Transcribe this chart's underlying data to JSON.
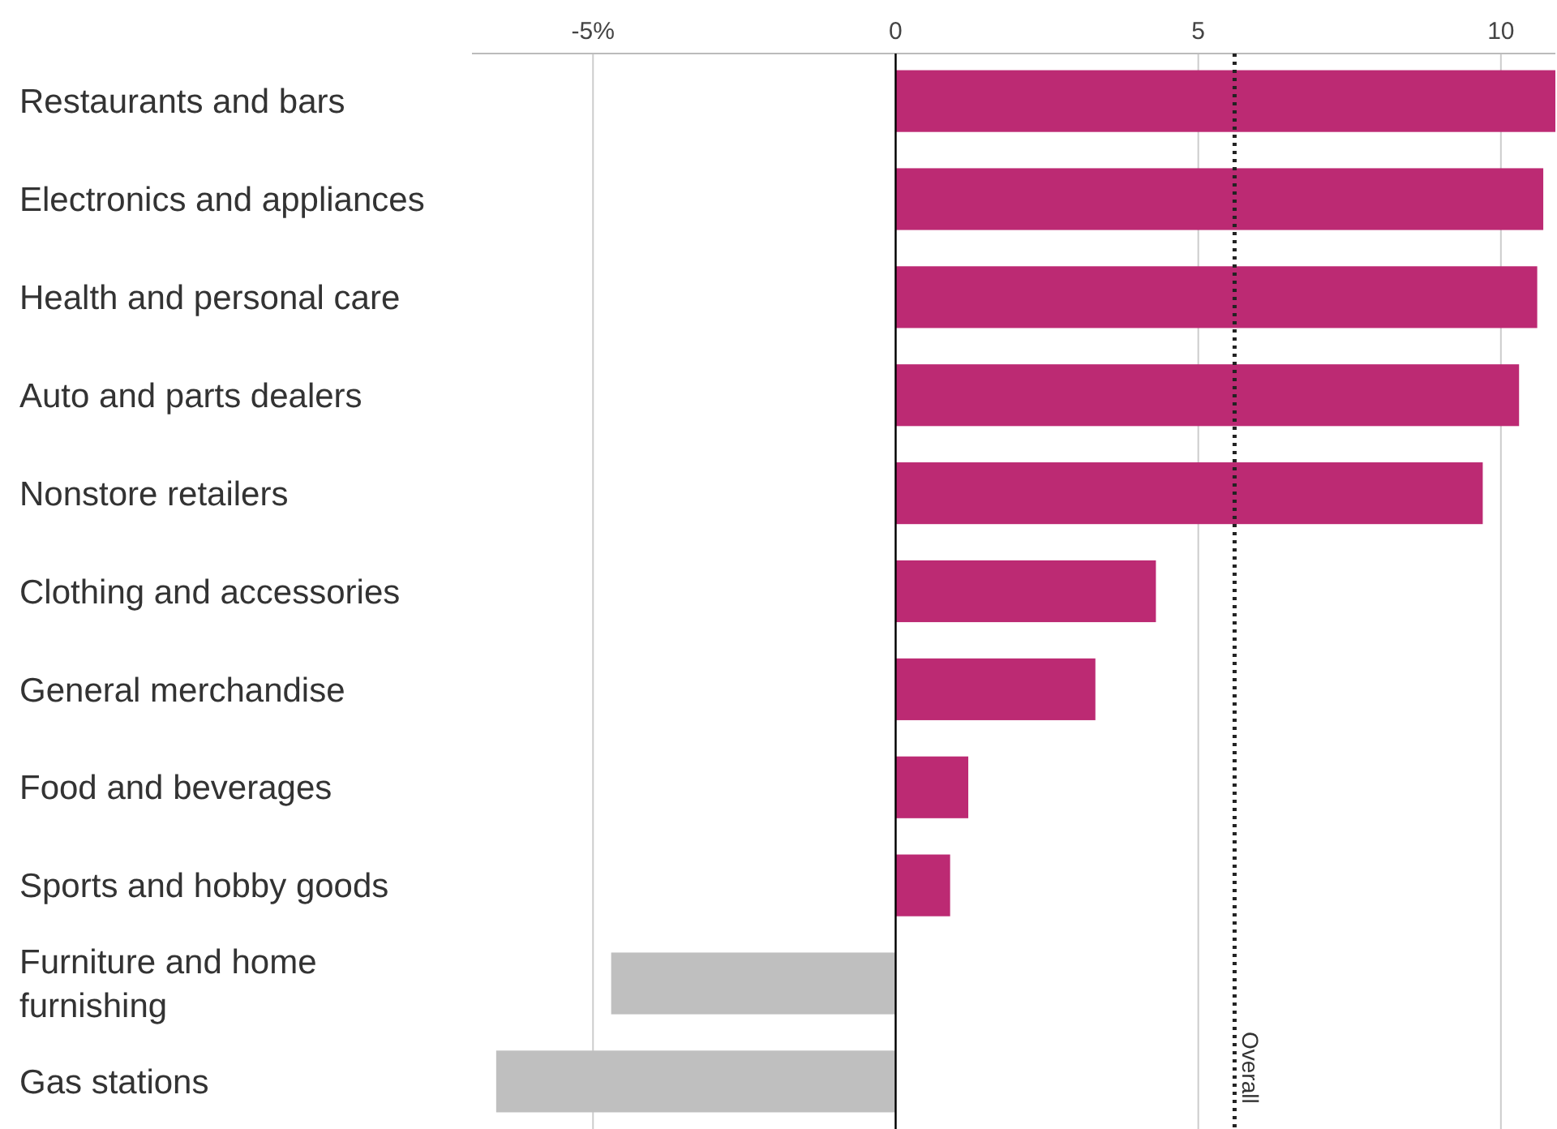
{
  "chart_data": {
    "type": "bar",
    "orientation": "horizontal",
    "categories": [
      "Restaurants and bars",
      "Electronics and appliances",
      "Health and personal care",
      "Auto and parts dealers",
      "Nonstore retailers",
      "Clothing and accessories",
      "General merchandise",
      "Food and beverages",
      "Sports and hobby goods",
      "Furniture and home furnishing",
      "Gas stations"
    ],
    "values": [
      10.9,
      10.7,
      10.6,
      10.3,
      9.7,
      4.3,
      3.3,
      1.2,
      0.9,
      -4.7,
      -6.6
    ],
    "colors": [
      "#bc2a73",
      "#bc2a73",
      "#bc2a73",
      "#bc2a73",
      "#bc2a73",
      "#bc2a73",
      "#bc2a73",
      "#bc2a73",
      "#bc2a73",
      "#bfbfbf",
      "#bfbfbf"
    ],
    "xlim": [
      -7,
      10.9
    ],
    "xticks": [
      {
        "value": -5,
        "label": "-5%"
      },
      0,
      5,
      10
    ],
    "grid": "x",
    "ref_lines": [
      {
        "axis": "x",
        "value": 5.6,
        "label": "Overall",
        "line_style": "dotted",
        "color": "#222222"
      }
    ]
  }
}
